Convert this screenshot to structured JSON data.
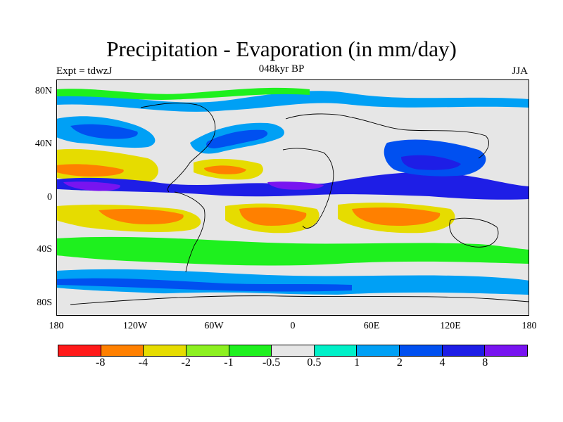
{
  "header": {
    "title": "Precipitation - Evaporation (in mm/day)",
    "subtitle": "048kyr BP",
    "experiment": "Expt = tdwzJ",
    "season": "JJA"
  },
  "axes": {
    "y_ticks": [
      "80N",
      "40N",
      "0",
      "40S",
      "80S"
    ],
    "x_ticks": [
      "180",
      "120W",
      "60W",
      "0",
      "60E",
      "120E",
      "180"
    ]
  },
  "colorbar": {
    "colors": [
      "#ff1a1a",
      "#ff8000",
      "#e6dc00",
      "#8cf020",
      "#1ef01e",
      "#e6e6e6",
      "#00f0c8",
      "#00a0f5",
      "#0050f0",
      "#1e1ee6",
      "#7814f0"
    ],
    "labels": [
      "-8",
      "-4",
      "-2",
      "-1",
      "-0.5",
      "0.5",
      "1",
      "2",
      "4",
      "8"
    ]
  },
  "map": {
    "background_color": "#e6e6e6",
    "coastline_color": "#000000"
  }
}
